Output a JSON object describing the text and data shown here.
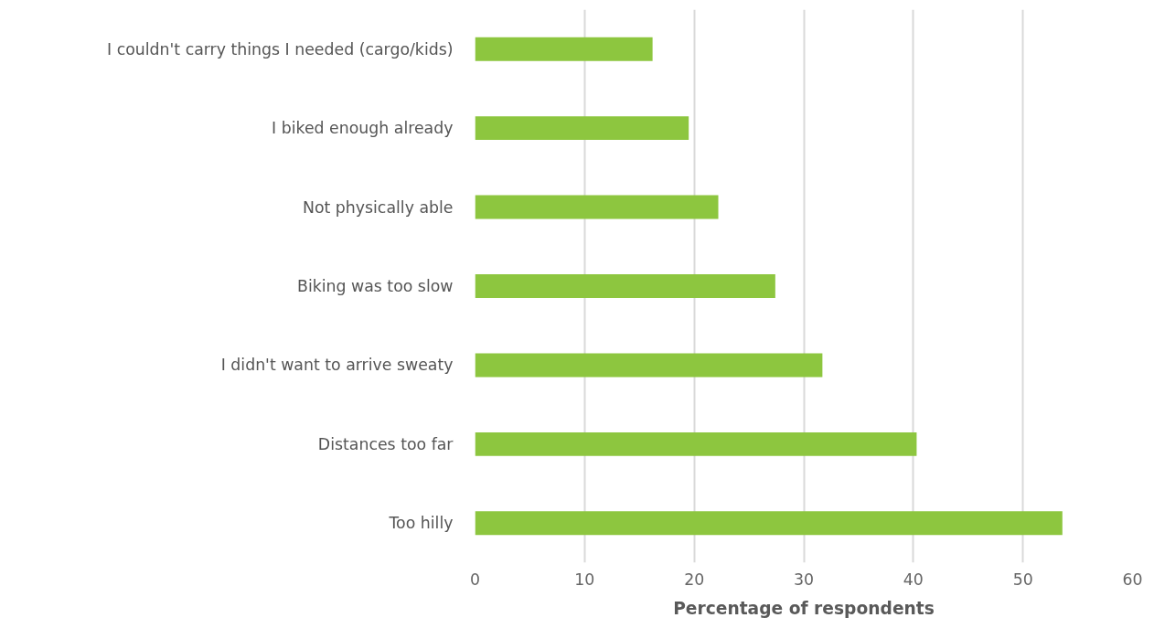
{
  "chart_data": {
    "type": "bar",
    "orientation": "horizontal",
    "xlabel": "Percentage of respondents",
    "categories": [
      "I couldn't carry things I needed (cargo/kids)",
      "I biked enough already",
      "Not physically able",
      "Biking was too slow",
      "I didn't want to arrive sweaty",
      "Distances too far",
      "Too hilly"
    ],
    "values": [
      16.2,
      19.5,
      22.2,
      27.4,
      31.7,
      40.3,
      53.6
    ],
    "color": "#8dc63f",
    "xlim": [
      0,
      60
    ],
    "xticks": [
      0,
      10,
      20,
      30,
      40,
      50,
      60
    ],
    "grid": "x"
  }
}
